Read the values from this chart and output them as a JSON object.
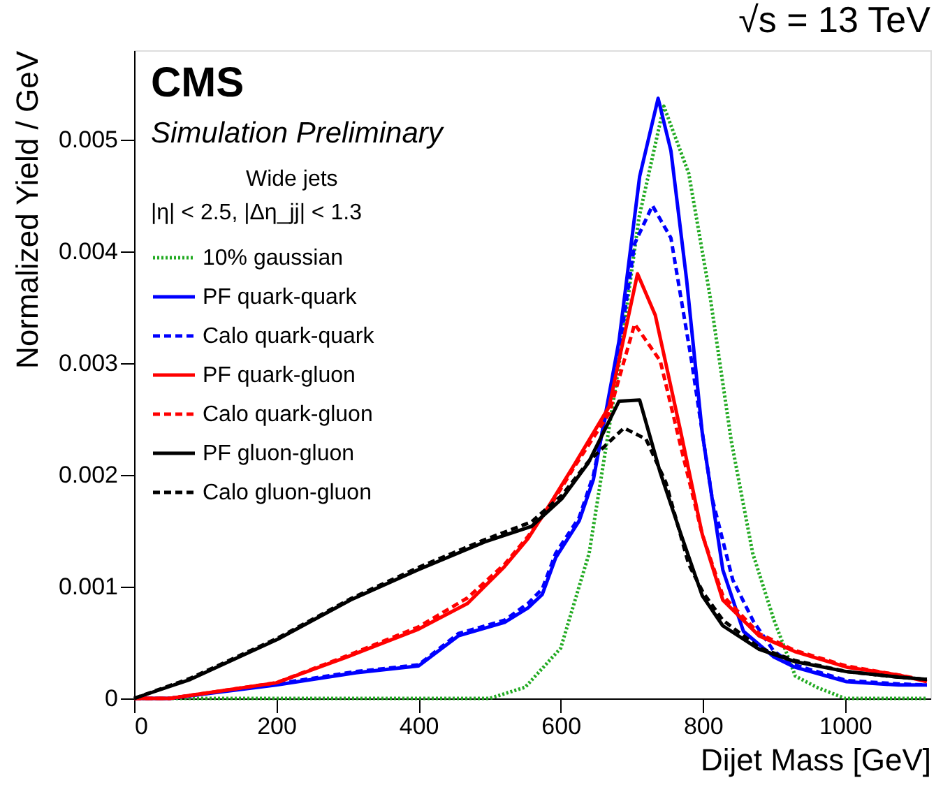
{
  "chart_data": {
    "type": "line",
    "title": "√s = 13 TeV",
    "xlabel": "Dijet Mass [GeV]",
    "ylabel": "Normalized Yield / GeV",
    "annotations": [
      "CMS",
      "Simulation Preliminary",
      "Wide jets",
      "|η| < 2.5, |Δη_jj| < 1.3"
    ],
    "xlim": [
      0,
      1120
    ],
    "ylim": [
      0,
      0.0058
    ],
    "xticks": [
      0,
      200,
      400,
      600,
      800,
      1000
    ],
    "yticks": [
      0,
      0.001,
      0.002,
      0.003,
      0.004,
      0.005
    ],
    "grid": false,
    "legend": "left",
    "marker": "none",
    "series": [
      {
        "name": "10% gaussian",
        "color": "#22aa22",
        "line_style": "dotted",
        "x": [
          0,
          450,
          500,
          550,
          600,
          640,
          680,
          710,
          745,
          780,
          810,
          840,
          870,
          900,
          930,
          960,
          1000,
          1115
        ],
        "values": [
          0,
          0,
          0,
          0.0001,
          0.00045,
          0.0013,
          0.0029,
          0.0043,
          0.0053,
          0.0047,
          0.0036,
          0.0023,
          0.0013,
          0.0007,
          0.0002,
          0.0001,
          0,
          0
        ]
      },
      {
        "name": "PF quark-quark",
        "color": "#0000ff",
        "line_style": "solid",
        "x": [
          0,
          50,
          200,
          312,
          400,
          456,
          521,
          554,
          574,
          593,
          626,
          646,
          682,
          711,
          737,
          755,
          777,
          799,
          828,
          857,
          900,
          929,
          1002,
          1075,
          1115
        ],
        "values": [
          0,
          0,
          0.00012,
          0.00023,
          0.00029,
          0.00056,
          0.00068,
          0.00081,
          0.00093,
          0.00126,
          0.00159,
          0.00196,
          0.0032,
          0.00467,
          0.00537,
          0.0049,
          0.00375,
          0.00238,
          0.00115,
          0.0006,
          0.00037,
          0.00028,
          0.00015,
          0.00012,
          0.00012
        ]
      },
      {
        "name": "Calo quark-quark",
        "color": "#0000ff",
        "line_style": "dashed",
        "x": [
          0,
          50,
          200,
          312,
          400,
          456,
          521,
          554,
          574,
          593,
          626,
          646,
          682,
          704,
          729,
          755,
          784,
          813,
          842,
          871,
          900,
          929,
          1002,
          1075,
          1115
        ],
        "values": [
          0,
          0,
          0.00013,
          0.00024,
          0.0003,
          0.00058,
          0.0007,
          0.00085,
          0.00098,
          0.0013,
          0.00162,
          0.002,
          0.00311,
          0.00407,
          0.00441,
          0.00412,
          0.00302,
          0.00179,
          0.00106,
          0.00069,
          0.00042,
          0.0003,
          0.00016,
          0.00013,
          0.00012
        ]
      },
      {
        "name": "PF quark-gluon",
        "color": "#ff0000",
        "line_style": "solid",
        "x": [
          0,
          50,
          200,
          299,
          400,
          469,
          521,
          554,
          587,
          619,
          668,
          708,
          733,
          769,
          799,
          828,
          879,
          929,
          1002,
          1075,
          1115
        ],
        "values": [
          0,
          0,
          0.00014,
          0.00037,
          0.00062,
          0.00085,
          0.00118,
          0.00143,
          0.00176,
          0.00209,
          0.00261,
          0.0038,
          0.00343,
          0.00238,
          0.00147,
          0.00088,
          0.00056,
          0.00042,
          0.00028,
          0.00021,
          0.00015
        ]
      },
      {
        "name": "Calo quark-gluon",
        "color": "#ff0000",
        "line_style": "dashed",
        "x": [
          0,
          50,
          200,
          299,
          400,
          469,
          521,
          554,
          587,
          619,
          668,
          704,
          740,
          769,
          799,
          828,
          879,
          929,
          1002,
          1075,
          1115
        ],
        "values": [
          0,
          0,
          0.00014,
          0.00038,
          0.00064,
          0.0009,
          0.0012,
          0.00145,
          0.00174,
          0.00207,
          0.00255,
          0.00335,
          0.00302,
          0.00225,
          0.00147,
          0.00092,
          0.00058,
          0.00043,
          0.00029,
          0.00021,
          0.00016
        ]
      },
      {
        "name": "PF gluon-gluon",
        "color": "#000000",
        "line_style": "solid",
        "x": [
          0,
          79,
          202,
          304,
          399,
          493,
          559,
          602,
          639,
          682,
          711,
          740,
          769,
          799,
          828,
          879,
          929,
          1002,
          1075,
          1115
        ],
        "values": [
          0,
          0.00017,
          0.00053,
          0.00088,
          0.00115,
          0.0014,
          0.00154,
          0.00179,
          0.00211,
          0.00266,
          0.00267,
          0.00202,
          0.00147,
          0.00092,
          0.00065,
          0.00044,
          0.00033,
          0.00024,
          0.00019,
          0.00017
        ]
      },
      {
        "name": "Calo gluon-gluon",
        "color": "#000000",
        "line_style": "dashed",
        "x": [
          0,
          79,
          202,
          304,
          399,
          493,
          559,
          602,
          639,
          689,
          720,
          748,
          780,
          800,
          828,
          880,
          929,
          1002,
          1075,
          1115
        ],
        "values": [
          0,
          0.00018,
          0.00054,
          0.00089,
          0.00117,
          0.00142,
          0.00158,
          0.00182,
          0.00212,
          0.00242,
          0.00232,
          0.00193,
          0.0012,
          0.00095,
          0.0007,
          0.00045,
          0.00034,
          0.00024,
          0.00019,
          0.00017
        ]
      }
    ]
  }
}
